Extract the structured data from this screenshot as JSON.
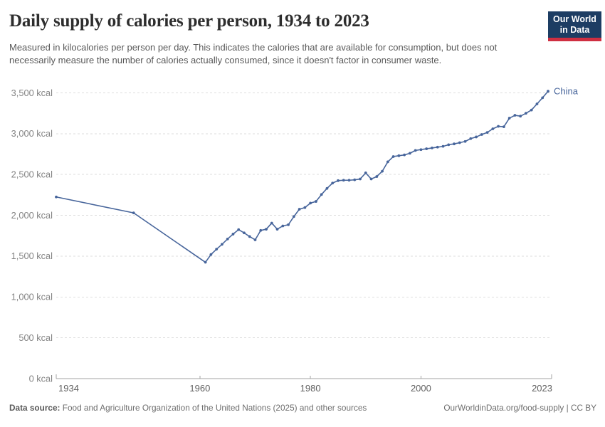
{
  "header": {
    "title": "Daily supply of calories per person, 1934 to 2023",
    "subtitle": "Measured in kilocalories per person per day. This indicates the calories that are available for consumption, but does not necessarily measure the number of calories actually consumed, since it doesn't factor in consumer waste.",
    "logo": {
      "line1": "Our World",
      "line2": "in Data"
    }
  },
  "footer": {
    "datasource_label": "Data source:",
    "datasource_text": " Food and Agriculture Organization of the United Nations (2025) and other sources",
    "link_text": "OurWorldinData.org/food-supply | CC BY"
  },
  "colors": {
    "series_line": "#47659b",
    "logo_navy": "#1d3d63",
    "logo_red": "#cf2f41",
    "gridline": "#dedede",
    "axis": "#a3a3a3",
    "y_tick_label": "#848484",
    "x_tick_label": "#5f5f5f"
  },
  "chart_data": {
    "type": "line",
    "title": "Daily supply of calories per person, 1934 to 2023",
    "unit": "kcal",
    "xlabel": "",
    "ylabel": "",
    "xlim": [
      1934,
      2023
    ],
    "ylim": [
      0,
      3500
    ],
    "grid": "horizontal-dashed",
    "legend_position": "end-of-line",
    "x_ticks": [
      1934,
      1960,
      1980,
      2000,
      2023
    ],
    "y_ticks": [
      0,
      500,
      1000,
      1500,
      2000,
      2500,
      3000,
      3500
    ],
    "y_tick_labels": [
      "0 kcal",
      "500 kcal",
      "1,000 kcal",
      "1,500 kcal",
      "2,000 kcal",
      "2,500 kcal",
      "3,000 kcal",
      "3,500 kcal"
    ],
    "series": [
      {
        "name": "China",
        "color": "#47659b",
        "points": [
          [
            1934,
            2225
          ],
          [
            1948,
            2030
          ],
          [
            1961,
            1425
          ],
          [
            1962,
            1520
          ],
          [
            1963,
            1585
          ],
          [
            1964,
            1645
          ],
          [
            1965,
            1710
          ],
          [
            1966,
            1770
          ],
          [
            1967,
            1825
          ],
          [
            1968,
            1785
          ],
          [
            1969,
            1740
          ],
          [
            1970,
            1700
          ],
          [
            1971,
            1815
          ],
          [
            1972,
            1830
          ],
          [
            1973,
            1905
          ],
          [
            1974,
            1830
          ],
          [
            1975,
            1870
          ],
          [
            1976,
            1885
          ],
          [
            1977,
            1985
          ],
          [
            1978,
            2075
          ],
          [
            1979,
            2095
          ],
          [
            1980,
            2150
          ],
          [
            1981,
            2170
          ],
          [
            1982,
            2255
          ],
          [
            1983,
            2330
          ],
          [
            1984,
            2395
          ],
          [
            1985,
            2425
          ],
          [
            1986,
            2430
          ],
          [
            1987,
            2430
          ],
          [
            1988,
            2435
          ],
          [
            1989,
            2445
          ],
          [
            1990,
            2520
          ],
          [
            1991,
            2445
          ],
          [
            1992,
            2475
          ],
          [
            1993,
            2540
          ],
          [
            1994,
            2655
          ],
          [
            1995,
            2720
          ],
          [
            1996,
            2730
          ],
          [
            1997,
            2740
          ],
          [
            1998,
            2760
          ],
          [
            1999,
            2795
          ],
          [
            2000,
            2805
          ],
          [
            2001,
            2815
          ],
          [
            2002,
            2825
          ],
          [
            2003,
            2835
          ],
          [
            2004,
            2845
          ],
          [
            2005,
            2865
          ],
          [
            2006,
            2875
          ],
          [
            2007,
            2890
          ],
          [
            2008,
            2905
          ],
          [
            2009,
            2940
          ],
          [
            2010,
            2960
          ],
          [
            2011,
            2990
          ],
          [
            2012,
            3015
          ],
          [
            2013,
            3060
          ],
          [
            2014,
            3090
          ],
          [
            2015,
            3085
          ],
          [
            2016,
            3190
          ],
          [
            2017,
            3225
          ],
          [
            2018,
            3215
          ],
          [
            2019,
            3250
          ],
          [
            2020,
            3290
          ],
          [
            2021,
            3365
          ],
          [
            2022,
            3440
          ],
          [
            2023,
            3520
          ]
        ]
      }
    ]
  }
}
